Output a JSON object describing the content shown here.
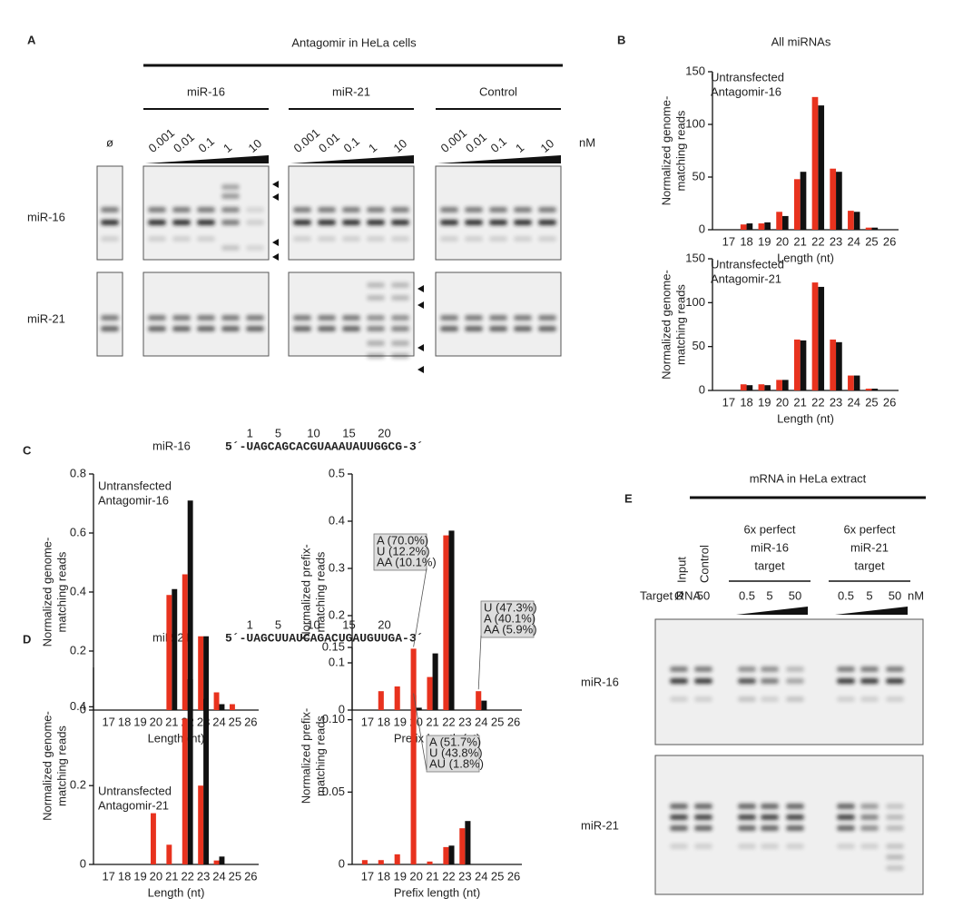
{
  "panel_labels": [
    "A",
    "B",
    "C",
    "D",
    "E"
  ],
  "panel_a": {
    "title": "Antagomir in HeLa cells",
    "groups": [
      "miR-16",
      "miR-21",
      "Control"
    ],
    "concentrations": [
      "0.001",
      "0.01",
      "0.1",
      "1",
      "10"
    ],
    "unit": "nM",
    "blank": "ø",
    "rows": [
      "miR-16",
      "miR-21"
    ]
  },
  "sequences": [
    {
      "name": "miR-16",
      "sequence": "5´-UAGCAGCACGUAAAUAUUGGCG-3´",
      "positions": [
        "1",
        "5",
        "10",
        "15",
        "20"
      ]
    },
    {
      "name": "miR-21",
      "sequence": "5´-UAGCUUAUCAGACUGAUGUUGA-3´",
      "positions": [
        "1",
        "5",
        "10",
        "15",
        "20"
      ]
    }
  ],
  "panel_e": {
    "title": "mRNA in HeLa extract",
    "lanes": [
      "Input",
      "Control"
    ],
    "targets": [
      [
        "6x perfect",
        "miR-16",
        "target"
      ],
      [
        "6x perfect",
        "miR-21",
        "target"
      ]
    ],
    "row_header": "Target RNA",
    "blank": "Ø",
    "control_conc": "50",
    "concentrations": [
      "0.5",
      "5",
      "50"
    ],
    "unit": "nM",
    "rows": [
      "miR-16",
      "miR-21"
    ]
  },
  "chart_data": [
    {
      "type": "bar",
      "title": "All miRNAs",
      "ylabel": [
        "Normalized genome-",
        "matching reads"
      ],
      "xlabel": "Length (nt)",
      "categories": [
        "17",
        "18",
        "19",
        "20",
        "21",
        "22",
        "23",
        "24",
        "25",
        "26"
      ],
      "series": [
        {
          "name": "Untransfected",
          "color": "#111111",
          "values": [
            0,
            6,
            7,
            13,
            55,
            118,
            55,
            17,
            2,
            0
          ]
        },
        {
          "name": "Antagomir-16",
          "color": "#e8321e",
          "values": [
            0,
            5,
            6,
            17,
            48,
            126,
            58,
            18,
            2,
            0
          ]
        }
      ],
      "ylim": [
        0,
        150
      ],
      "yticks": [
        0,
        50,
        100,
        150
      ]
    },
    {
      "type": "bar",
      "ylabel": [
        "Normalized genome-",
        "matching reads"
      ],
      "xlabel": "Length (nt)",
      "categories": [
        "17",
        "18",
        "19",
        "20",
        "21",
        "22",
        "23",
        "24",
        "25",
        "26"
      ],
      "series": [
        {
          "name": "Untransfected",
          "color": "#111111",
          "values": [
            0,
            6,
            6,
            12,
            57,
            118,
            55,
            17,
            2,
            0
          ]
        },
        {
          "name": "Antagomir-21",
          "color": "#e8321e",
          "values": [
            0,
            7,
            7,
            12,
            58,
            123,
            58,
            17,
            2,
            0
          ]
        }
      ],
      "ylim": [
        0,
        150
      ],
      "yticks": [
        0,
        50,
        100,
        150
      ]
    },
    {
      "type": "bar",
      "ylabel": [
        "Normalized genome-",
        "matching reads"
      ],
      "xlabel": "Length (nt)",
      "categories": [
        "17",
        "18",
        "19",
        "20",
        "21",
        "22",
        "23",
        "24",
        "25",
        "26"
      ],
      "series": [
        {
          "name": "Untransfected",
          "color": "#111111",
          "values": [
            0,
            0,
            0,
            0,
            0.41,
            0.71,
            0.25,
            0.02,
            0,
            0
          ]
        },
        {
          "name": "Antagomir-16",
          "color": "#e8321e",
          "values": [
            0,
            0,
            0,
            0,
            0.39,
            0.46,
            0.25,
            0.06,
            0.02,
            0
          ]
        }
      ],
      "ylim": [
        0,
        0.8
      ],
      "yticks": [
        0,
        0.2,
        0.4,
        0.6,
        0.8
      ]
    },
    {
      "type": "bar",
      "ylabel": [
        "Normalized prefix-",
        "matching reads"
      ],
      "xlabel": "Prefix length (nt)",
      "categories": [
        "17",
        "18",
        "19",
        "20",
        "21",
        "22",
        "23",
        "24",
        "25",
        "26"
      ],
      "series": [
        {
          "name": "Untransfected",
          "color": "#111111",
          "values": [
            0,
            0,
            0,
            0.005,
            0.12,
            0.38,
            0,
            0.02,
            0,
            0
          ]
        },
        {
          "name": "Antagomir-16",
          "color": "#e8321e",
          "values": [
            0,
            0.04,
            0.05,
            0.13,
            0.07,
            0.37,
            0,
            0.04,
            0,
            0
          ]
        }
      ],
      "ylim": [
        0,
        0.5
      ],
      "yticks": [
        0,
        0.1,
        0.2,
        0.3,
        0.4,
        0.5
      ],
      "annotations": [
        [
          "A (70.0%)",
          "U (12.2%)",
          "AA (10.1%)"
        ],
        [
          "U (47.3%)",
          "A (40.1%)",
          "AA (5.9%)"
        ]
      ]
    },
    {
      "type": "bar",
      "ylabel": [
        "Normalized genome-",
        "matching reads"
      ],
      "xlabel": "Length (nt)",
      "categories": [
        "17",
        "18",
        "19",
        "20",
        "21",
        "22",
        "23",
        "24",
        "25",
        "26"
      ],
      "series": [
        {
          "name": "Untransfected",
          "color": "#111111",
          "values": [
            0,
            0,
            0,
            0,
            0,
            0.47,
            0.42,
            0.02,
            0,
            0
          ]
        },
        {
          "name": "Antagomir-21",
          "color": "#e8321e",
          "values": [
            0,
            0,
            0,
            0.13,
            0.05,
            0.37,
            0.2,
            0.01,
            0,
            0
          ]
        }
      ],
      "ylim": [
        0,
        0.5
      ],
      "yticks": [
        0,
        0.2,
        0.4
      ]
    },
    {
      "type": "bar",
      "ylabel": [
        "Normalized prefix-",
        "matching reads"
      ],
      "xlabel": "Prefix length (nt)",
      "categories": [
        "17",
        "18",
        "19",
        "20",
        "21",
        "22",
        "23",
        "24",
        "25",
        "26"
      ],
      "series": [
        {
          "name": "Untransfected",
          "color": "#111111",
          "values": [
            0,
            0,
            0,
            0,
            0,
            0.013,
            0.03,
            0,
            0,
            0
          ]
        },
        {
          "name": "Antagomir-21",
          "color": "#e8321e",
          "values": [
            0.003,
            0.003,
            0.007,
            0.117,
            0.002,
            0.012,
            0.025,
            0,
            0,
            0
          ]
        }
      ],
      "ylim": [
        0,
        0.15
      ],
      "yticks": [
        0,
        0.05,
        {
          "value": 0.1,
          "label": "0.10"
        },
        0.15
      ],
      "annotations": [
        [
          "A (51.7%)",
          "U (43.8%)",
          "AU (1.8%)"
        ]
      ]
    }
  ]
}
